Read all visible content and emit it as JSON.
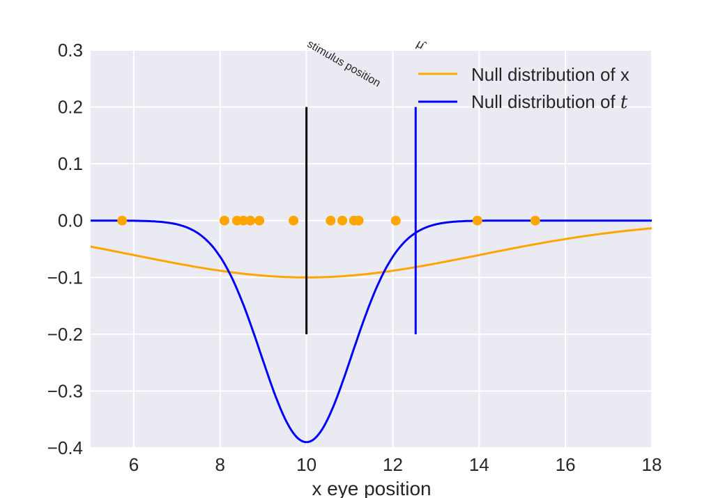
{
  "chart_data": {
    "type": "line",
    "title": "",
    "xlabel": "x eye position",
    "ylabel": "",
    "xlim": [
      5,
      18
    ],
    "ylim": [
      -0.4,
      0.3
    ],
    "xticks": [
      6,
      8,
      10,
      12,
      14,
      16,
      18
    ],
    "yticks": [
      -0.4,
      -0.3,
      -0.2,
      -0.1,
      0.0,
      0.1,
      0.2,
      0.3
    ],
    "ytick_labels": [
      "−0.4",
      "−0.3",
      "−0.2",
      "−0.1",
      "0.0",
      "0.1",
      "0.2",
      "0.3"
    ],
    "xtick_labels": [
      "6",
      "8",
      "10",
      "12",
      "14",
      "16",
      "18"
    ],
    "grid": true,
    "legend_position": "top-right",
    "series": [
      {
        "name": "Null distribution of x",
        "label_text": "Null distribution of x",
        "color": "#FFA500",
        "kind": "gaussian",
        "mean": 10,
        "sd": 4.0,
        "amplitude": -0.1
      },
      {
        "name": "Null distribution of t",
        "label_prefix": "Null distribution of ",
        "label_math": "t",
        "color": "#0000FF",
        "kind": "gaussian",
        "mean": 10,
        "sd": 1.05,
        "amplitude": -0.39
      }
    ],
    "points": {
      "color": "#FFA500",
      "x": [
        5.73,
        8.1,
        8.39,
        8.54,
        8.7,
        8.91,
        9.7,
        10.56,
        10.83,
        11.1,
        11.21,
        12.07,
        13.96,
        15.3
      ],
      "y": 0
    },
    "vlines": [
      {
        "x": 10,
        "ymin": -0.2,
        "ymax": 0.2,
        "color": "#000000",
        "label": "stimulus position"
      },
      {
        "x": 12.53,
        "ymin": -0.2,
        "ymax": 0.2,
        "color": "#0000FF",
        "label": "μ̂"
      }
    ]
  }
}
